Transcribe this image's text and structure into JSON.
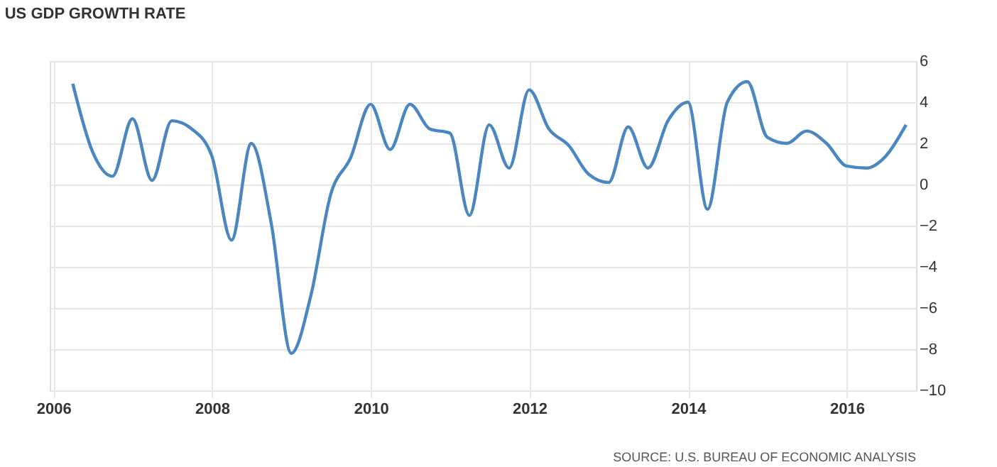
{
  "chart_data": {
    "type": "line",
    "title": "US GDP GROWTH RATE",
    "x": [
      "2006-03-31",
      "2006-06-30",
      "2006-09-30",
      "2006-12-31",
      "2007-03-31",
      "2007-06-30",
      "2007-09-30",
      "2007-12-31",
      "2008-03-31",
      "2008-06-30",
      "2008-09-30",
      "2008-12-31",
      "2009-03-31",
      "2009-06-30",
      "2009-09-30",
      "2009-12-31",
      "2010-03-31",
      "2010-06-30",
      "2010-09-30",
      "2010-12-31",
      "2011-03-31",
      "2011-06-30",
      "2011-09-30",
      "2011-12-31",
      "2012-03-31",
      "2012-06-30",
      "2012-09-30",
      "2012-12-31",
      "2013-03-31",
      "2013-06-30",
      "2013-09-30",
      "2013-12-31",
      "2014-03-31",
      "2014-06-30",
      "2014-09-30",
      "2014-12-31",
      "2015-03-31",
      "2015-06-30",
      "2015-09-30",
      "2015-12-31",
      "2016-03-31",
      "2016-06-30",
      "2016-09-30"
    ],
    "series": [
      {
        "color": "#4a86c0",
        "values": [
          4.9,
          1.6,
          0.4,
          3.2,
          0.2,
          3.1,
          2.7,
          1.4,
          -2.7,
          2.0,
          -1.9,
          -8.2,
          -5.4,
          -0.5,
          1.3,
          3.9,
          1.7,
          3.9,
          2.7,
          2.5,
          -1.5,
          2.9,
          0.8,
          4.6,
          2.7,
          1.9,
          0.5,
          0.1,
          2.8,
          0.8,
          3.1,
          4.0,
          -1.2,
          4.0,
          5.0,
          2.3,
          2.0,
          2.6,
          2.0,
          0.9,
          0.8,
          1.4,
          2.9
        ]
      }
    ],
    "xlim": [
      "2005-12-15",
      "2016-11-15"
    ],
    "xticks": [
      "2006",
      "2008",
      "2010",
      "2012",
      "2014",
      "2016"
    ],
    "ylim": [
      -10,
      6
    ],
    "yticks": [
      -10,
      -8,
      -6,
      -4,
      -2,
      0,
      2,
      4,
      6
    ],
    "grid": true,
    "marker": "none",
    "line_style": "solid",
    "annotations": [
      "SOURCE: U.S. BUREAU OF ECONOMIC ANALYSIS"
    ]
  }
}
